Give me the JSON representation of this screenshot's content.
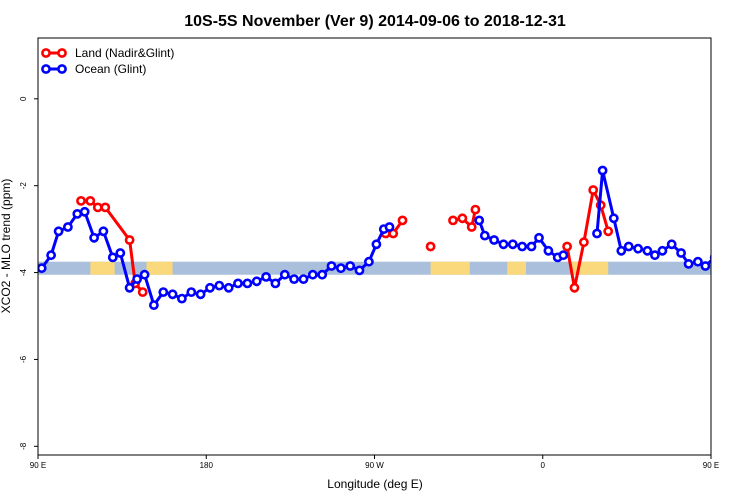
{
  "chart_data": {
    "type": "line",
    "title": "10S-5S November (Ver 9)   2014-09-06 to 2018-12-31",
    "xlabel": "Longitude (deg E)",
    "ylabel": "XCO2 - MLO trend (ppm)",
    "xlim": [
      90,
      450
    ],
    "ylim": [
      -8.2,
      1.4
    ],
    "x_ticks": [
      {
        "value": 90,
        "label": "90 E"
      },
      {
        "value": 180,
        "label": "180"
      },
      {
        "value": 270,
        "label": "90 W"
      },
      {
        "value": 360,
        "label": "0"
      },
      {
        "value": 450,
        "label": "90 E"
      },
      {
        "value": 540,
        "label": "180"
      }
    ],
    "y_ticks": [
      {
        "value": 0,
        "label": "0"
      },
      {
        "value": -2,
        "label": "-2"
      },
      {
        "value": -4,
        "label": "-4"
      },
      {
        "value": -6,
        "label": "-6"
      },
      {
        "value": -8,
        "label": "-8"
      }
    ],
    "x_domain": [
      90,
      540
    ],
    "legend_position": "top-left",
    "grid": false,
    "map_strip": {
      "y_top": -3.75,
      "y_bottom": -4.05,
      "ocean_color": "#a9bfdb",
      "land_color": "#f9d97c",
      "land_segments": [
        [
          118,
          131
        ],
        [
          148,
          162
        ],
        [
          300,
          321
        ],
        [
          341,
          351
        ],
        [
          375,
          395
        ],
        [
          478,
          512
        ],
        [
          530,
          540
        ]
      ]
    },
    "series": [
      {
        "name": "Land (Nadir&Glint)",
        "color": "#ff0000",
        "points": [
          [
            113,
            -2.35
          ],
          [
            118,
            -2.35
          ],
          [
            122,
            -2.5
          ],
          [
            126,
            -2.5
          ],
          [
            139,
            -3.25
          ],
          [
            142,
            -4.25
          ],
          [
            146,
            -4.45
          ],
          null,
          [
            276,
            -3.1
          ],
          [
            280,
            -3.1
          ],
          [
            285,
            -2.8
          ],
          null,
          [
            300,
            -3.4
          ],
          null,
          [
            312,
            -2.8
          ],
          [
            317,
            -2.75
          ],
          [
            322,
            -2.95
          ],
          [
            324,
            -2.55
          ],
          null,
          [
            373,
            -3.4
          ],
          [
            377,
            -4.35
          ],
          [
            382,
            -3.3
          ],
          [
            387,
            -2.1
          ],
          [
            391,
            -2.45
          ],
          [
            395,
            -3.05
          ],
          null,
          [
            473,
            -2.35
          ],
          [
            478,
            -2.35
          ],
          [
            482,
            -2.5
          ],
          [
            486,
            -2.5
          ],
          null,
          [
            499,
            -3.25
          ],
          [
            502,
            -4.25
          ],
          [
            506,
            -4.45
          ]
        ]
      },
      {
        "name": "Ocean (Glint)",
        "color": "#0000ff",
        "points": [
          [
            92,
            -3.9
          ],
          [
            97,
            -3.6
          ],
          [
            101,
            -3.05
          ],
          [
            106,
            -2.95
          ],
          [
            111,
            -2.65
          ],
          [
            115,
            -2.6
          ],
          [
            120,
            -3.2
          ],
          [
            125,
            -3.05
          ],
          [
            130,
            -3.65
          ],
          [
            134,
            -3.55
          ],
          [
            139,
            -4.35
          ],
          [
            143,
            -4.15
          ],
          [
            147,
            -4.05
          ],
          [
            152,
            -4.75
          ],
          [
            157,
            -4.45
          ],
          [
            162,
            -4.5
          ],
          [
            167,
            -4.6
          ],
          [
            172,
            -4.45
          ],
          [
            177,
            -4.5
          ],
          [
            182,
            -4.35
          ],
          [
            187,
            -4.3
          ],
          [
            192,
            -4.35
          ],
          [
            197,
            -4.25
          ],
          [
            202,
            -4.25
          ],
          [
            207,
            -4.2
          ],
          [
            212,
            -4.1
          ],
          [
            217,
            -4.25
          ],
          [
            222,
            -4.05
          ],
          [
            227,
            -4.15
          ],
          [
            232,
            -4.15
          ],
          [
            237,
            -4.05
          ],
          [
            242,
            -4.05
          ],
          [
            247,
            -3.85
          ],
          [
            252,
            -3.9
          ],
          [
            257,
            -3.85
          ],
          [
            262,
            -3.95
          ],
          [
            267,
            -3.75
          ],
          [
            271,
            -3.35
          ],
          [
            275,
            -3.0
          ],
          [
            278,
            -2.95
          ],
          null,
          [
            326,
            -2.8
          ],
          [
            329,
            -3.15
          ],
          [
            334,
            -3.25
          ],
          [
            339,
            -3.35
          ],
          [
            344,
            -3.35
          ],
          [
            349,
            -3.4
          ],
          [
            354,
            -3.4
          ],
          [
            358,
            -3.2
          ],
          [
            363,
            -3.5
          ],
          [
            368,
            -3.65
          ],
          [
            371,
            -3.6
          ],
          null,
          [
            389,
            -3.1
          ],
          [
            392,
            -1.65
          ],
          [
            398,
            -2.75
          ],
          [
            402,
            -3.5
          ],
          [
            406,
            -3.4
          ],
          [
            411,
            -3.45
          ],
          [
            416,
            -3.5
          ],
          [
            420,
            -3.6
          ],
          [
            424,
            -3.5
          ],
          [
            429,
            -3.35
          ],
          [
            434,
            -3.55
          ],
          [
            438,
            -3.8
          ],
          [
            443,
            -3.75
          ],
          [
            447,
            -3.85
          ],
          [
            452,
            -3.65
          ],
          [
            456,
            -3.05
          ],
          [
            461,
            -2.95
          ],
          [
            465,
            -2.65
          ],
          [
            469,
            -2.6
          ],
          [
            473,
            -3.2
          ],
          [
            478,
            -3.05
          ],
          [
            482,
            -3.65
          ],
          [
            486,
            -3.55
          ],
          [
            491,
            -4.35
          ],
          [
            495,
            -4.15
          ],
          [
            499,
            -4.05
          ],
          [
            504,
            -4.75
          ],
          [
            509,
            -4.45
          ],
          [
            513,
            -4.5
          ],
          [
            518,
            -4.6
          ],
          [
            522,
            -4.45
          ],
          [
            527,
            -4.5
          ],
          [
            532,
            -4.35
          ],
          [
            536,
            -4.3
          ],
          [
            540,
            -4.35
          ]
        ]
      }
    ]
  }
}
